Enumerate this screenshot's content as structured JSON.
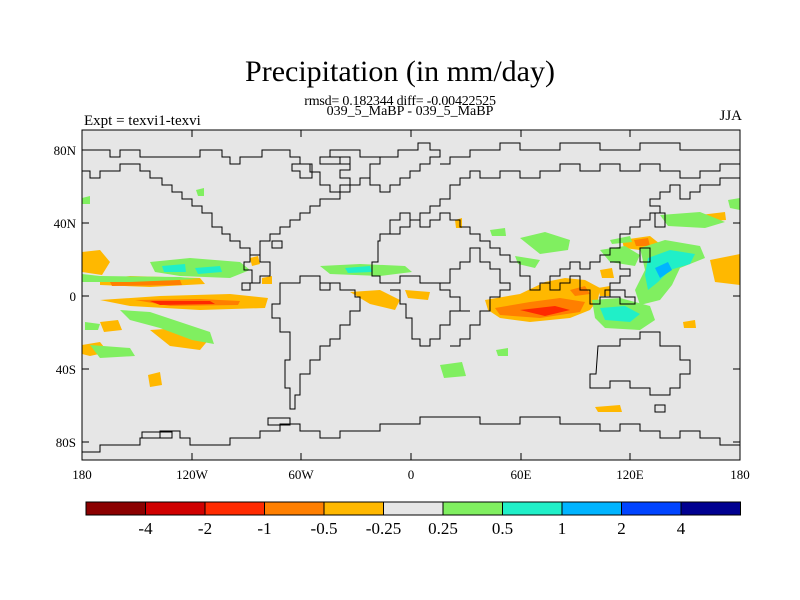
{
  "title": "Precipitation (in mm/day)",
  "stats": "rmsd= 0.182344 diff= -0.00422525",
  "subtitle": "039_5_MaBP - 039_5_MaBP",
  "experiment": "Expt = texvi1-texvi",
  "season": "JJA",
  "map": {
    "type": "filled-contour-world-map",
    "lon_range": [
      -180,
      180
    ],
    "lat_range": [
      -90,
      90
    ],
    "y_ticks": [
      "80N",
      "40N",
      "0",
      "40S",
      "80S"
    ],
    "x_ticks": [
      "180",
      "120W",
      "60W",
      "0",
      "60E",
      "120E",
      "180"
    ]
  },
  "colorbar": {
    "labels": [
      "-4",
      "-2",
      "-1",
      "-0.5",
      "-0.25",
      "0.25",
      "0.5",
      "1",
      "2",
      "4"
    ],
    "colors": [
      "#8b0000",
      "#d00000",
      "#ff2a00",
      "#ff7f00",
      "#ffb800",
      "#e6e6e6",
      "#80ef60",
      "#20efc8",
      "#00b4ff",
      "#0044ff",
      "#000090"
    ]
  }
}
